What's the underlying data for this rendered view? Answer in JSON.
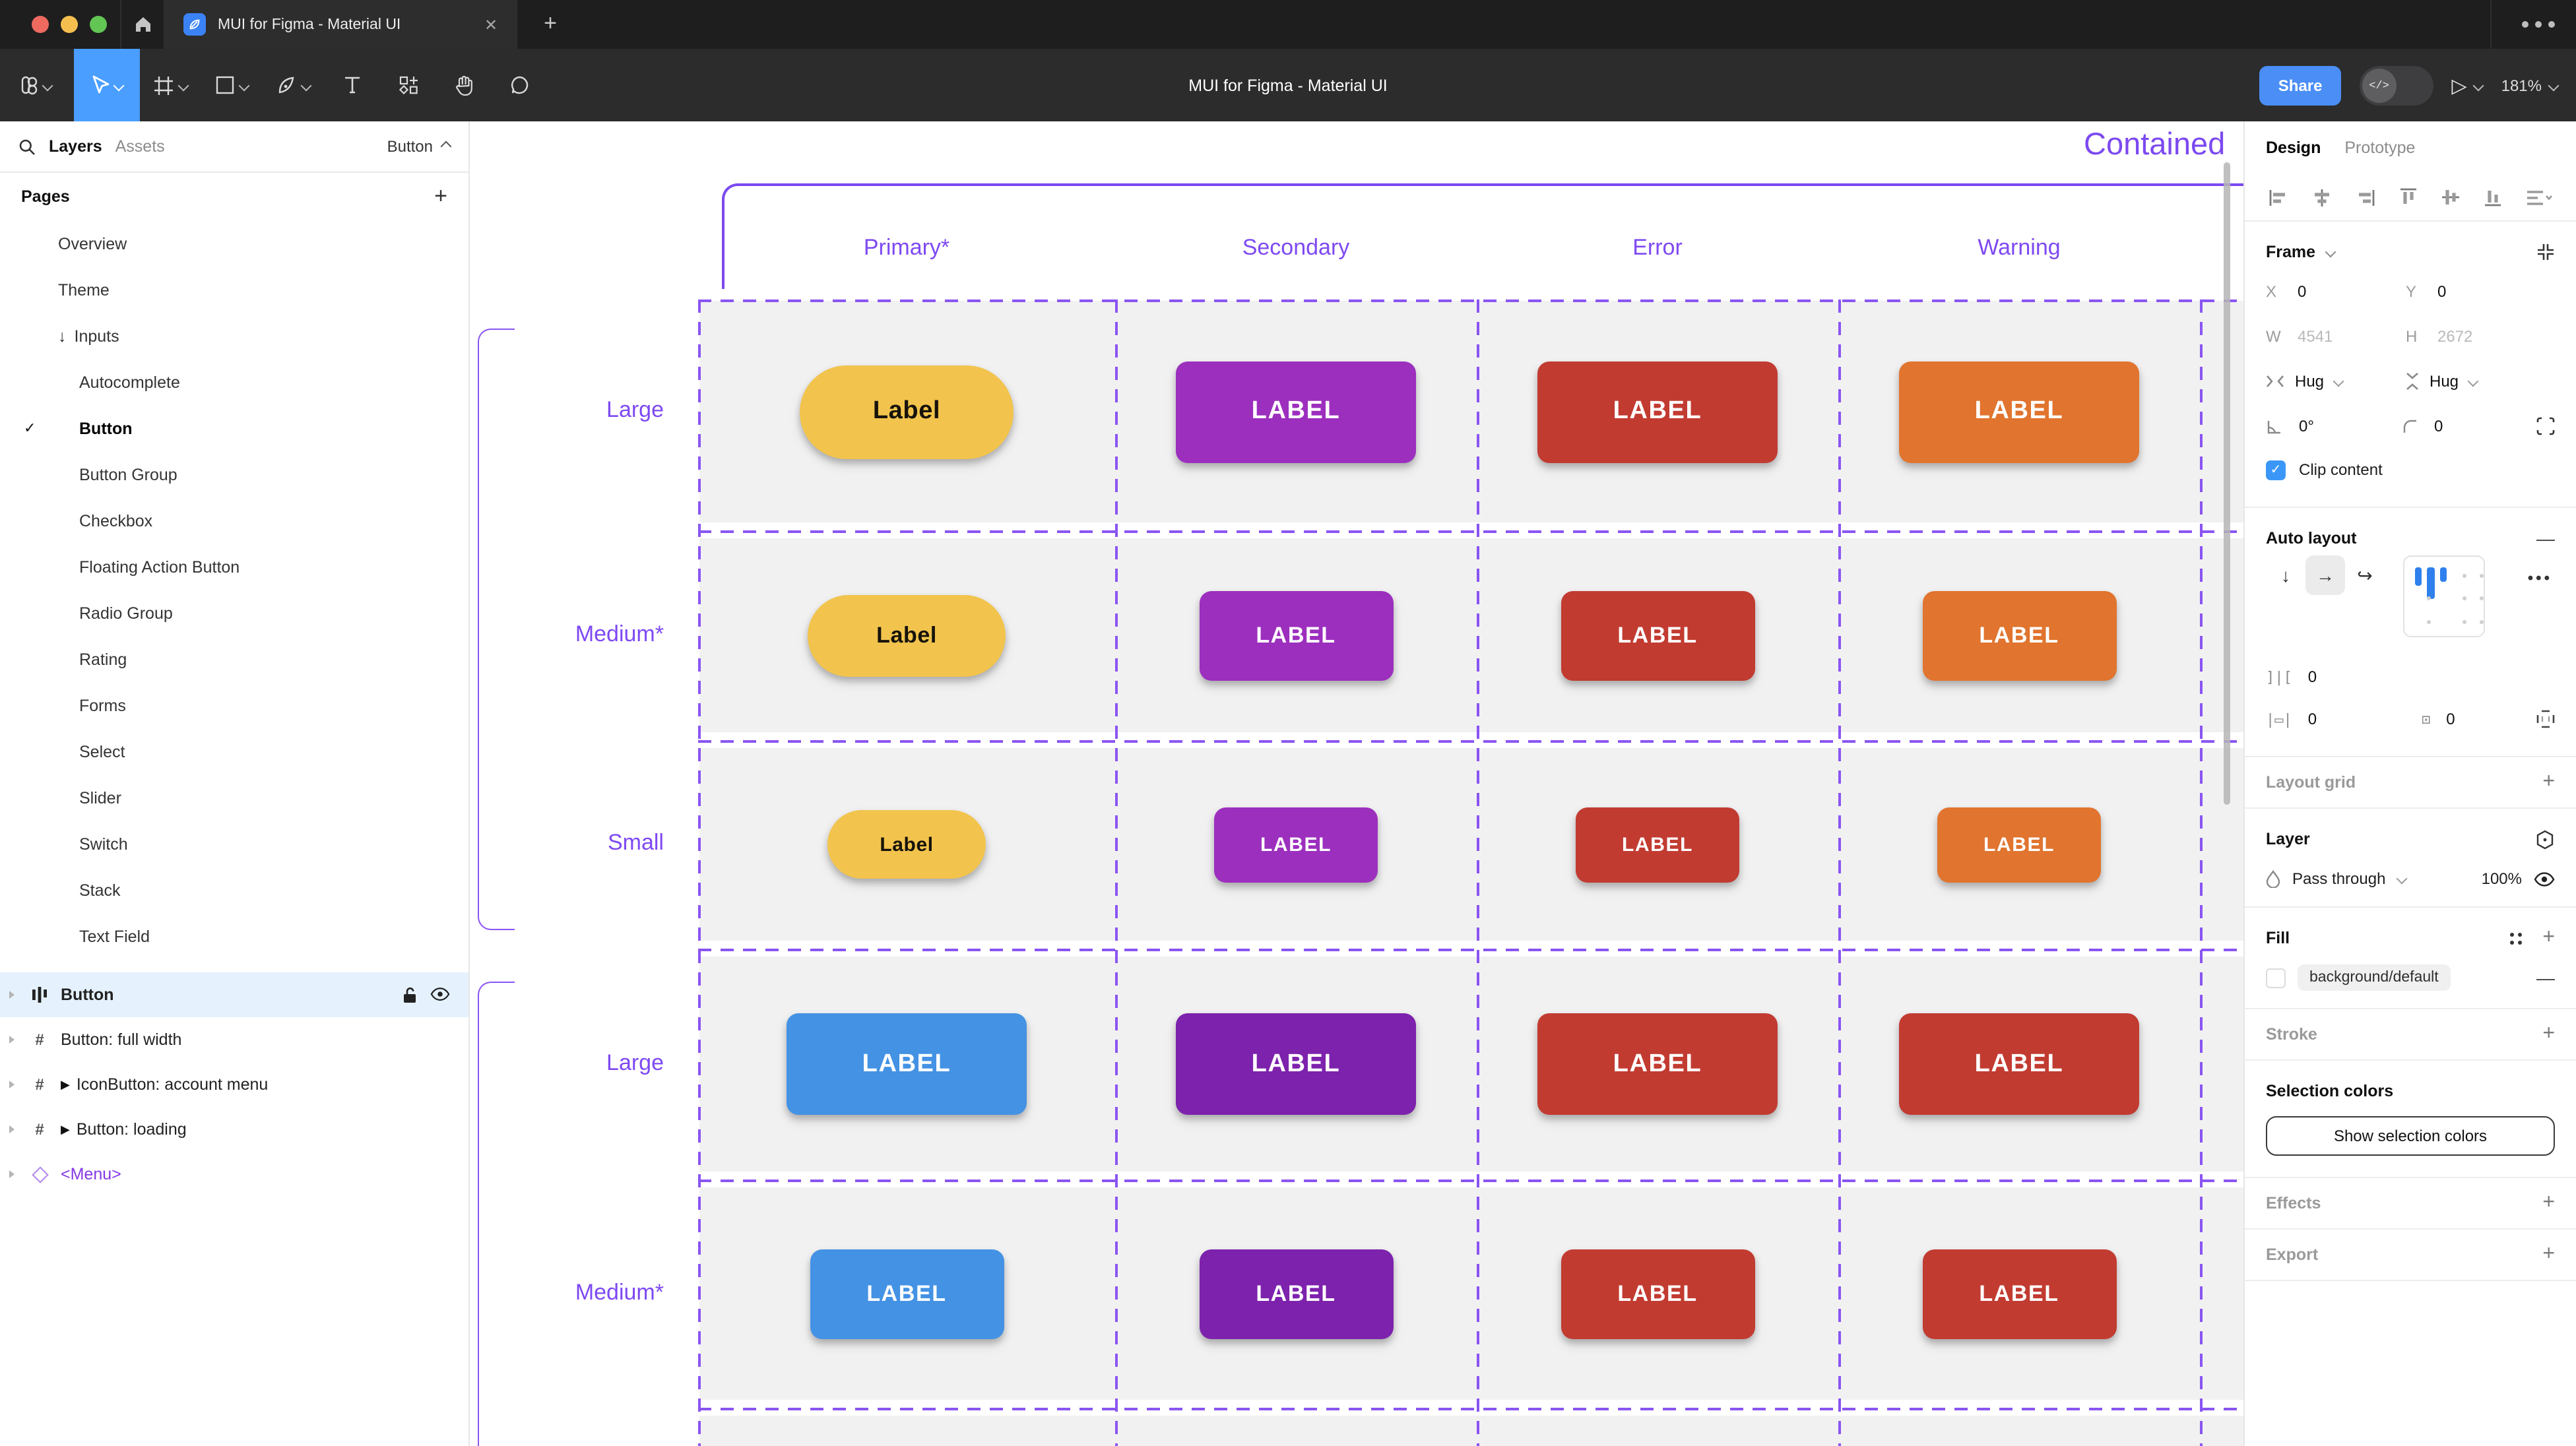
{
  "window": {
    "tab_title": "MUI for Figma - Material UI",
    "close_glyph": "✕",
    "new_tab_glyph": "+",
    "traffic_lights": [
      "#EE6A5F",
      "#F5BF4F",
      "#62C554"
    ]
  },
  "toolbar": {
    "doc_title": "MUI for Figma - Material UI",
    "share_label": "Share",
    "dev_toggle_glyph": "</>",
    "present_glyph": "▷",
    "zoom_level": "181%"
  },
  "left_panel": {
    "tabs": {
      "layers": "Layers",
      "assets": "Assets"
    },
    "page_selector": "Button",
    "pages_header": "Pages",
    "pages_add_glyph": "+",
    "pages": [
      {
        "label": "Overview",
        "indent": 1
      },
      {
        "label": "Theme",
        "indent": 1
      },
      {
        "label": "Inputs",
        "indent": 1,
        "arrow": "↓"
      },
      {
        "label": "Autocomplete",
        "indent": 2
      },
      {
        "label": "Button",
        "indent": 2,
        "checked": true,
        "selected": true
      },
      {
        "label": "Button Group",
        "indent": 2
      },
      {
        "label": "Checkbox",
        "indent": 2
      },
      {
        "label": "Floating Action Button",
        "indent": 2
      },
      {
        "label": "Radio Group",
        "indent": 2
      },
      {
        "label": "Rating",
        "indent": 2
      },
      {
        "label": "Forms",
        "indent": 2
      },
      {
        "label": "Select",
        "indent": 2
      },
      {
        "label": "Slider",
        "indent": 2
      },
      {
        "label": "Switch",
        "indent": 2
      },
      {
        "label": "Stack",
        "indent": 2
      },
      {
        "label": "Text Field",
        "indent": 2
      }
    ],
    "layers": [
      {
        "label": "Button",
        "icon": "autolayout",
        "selected": true
      },
      {
        "label": "Button: full width",
        "icon": "frame"
      },
      {
        "label": "IconButton: account menu",
        "icon": "frame",
        "play": true
      },
      {
        "label": "Button: loading",
        "icon": "frame",
        "play": true
      },
      {
        "label": "<Menu>",
        "icon": "component",
        "purple": true
      }
    ]
  },
  "canvas": {
    "frame_title": "Contained",
    "columns": [
      "Primary*",
      "Secondary",
      "Error",
      "Warning"
    ],
    "accent": "#7E49F2",
    "rows": [
      {
        "label": "Large",
        "size": "large",
        "buttons": [
          {
            "text": "Label",
            "bg": "#F2C44D",
            "fg": "#17130B",
            "pill": true
          },
          {
            "text": "LABEL",
            "bg": "#9C2FBE"
          },
          {
            "text": "LABEL",
            "bg": "#C23B31"
          },
          {
            "text": "LABEL",
            "bg": "#E1742E"
          }
        ]
      },
      {
        "label": "Medium*",
        "size": "medium",
        "buttons": [
          {
            "text": "Label",
            "bg": "#F2C44D",
            "fg": "#17130B",
            "pill": true
          },
          {
            "text": "LABEL",
            "bg": "#9C2FBE"
          },
          {
            "text": "LABEL",
            "bg": "#C23B31"
          },
          {
            "text": "LABEL",
            "bg": "#E1742E"
          }
        ]
      },
      {
        "label": "Small",
        "size": "small",
        "buttons": [
          {
            "text": "Label",
            "bg": "#F2C44D",
            "fg": "#17130B",
            "pill": true
          },
          {
            "text": "LABEL",
            "bg": "#9C2FBE"
          },
          {
            "text": "LABEL",
            "bg": "#C23B31"
          },
          {
            "text": "LABEL",
            "bg": "#E1742E"
          }
        ]
      },
      {
        "label": "Large",
        "size": "large",
        "buttons": [
          {
            "text": "LABEL",
            "bg": "#4492E4"
          },
          {
            "text": "LABEL",
            "bg": "#7D22AD"
          },
          {
            "text": "LABEL",
            "bg": "#C23B31"
          },
          {
            "text": "LABEL",
            "bg": "#C23B31"
          }
        ]
      },
      {
        "label": "Medium*",
        "size": "medium",
        "buttons": [
          {
            "text": "LABEL",
            "bg": "#4492E4"
          },
          {
            "text": "LABEL",
            "bg": "#7D22AD"
          },
          {
            "text": "LABEL",
            "bg": "#C23B31"
          },
          {
            "text": "LABEL",
            "bg": "#C23B31"
          }
        ]
      }
    ]
  },
  "right_panel": {
    "tabs": {
      "design": "Design",
      "prototype": "Prototype"
    },
    "frame": {
      "title": "Frame",
      "x_label": "X",
      "x": "0",
      "y_label": "Y",
      "y": "0",
      "w_label": "W",
      "w": "4541",
      "h_label": "H",
      "h": "2672",
      "hug_h": "Hug",
      "hug_v": "Hug",
      "angle": "0°",
      "radius": "0",
      "clip_label": "Clip content"
    },
    "auto_layout": {
      "title": "Auto layout",
      "down_glyph": "↓",
      "right_glyph": "→",
      "wrap_glyph": "↩",
      "gap": "0",
      "pad_h": "0",
      "pad_v": "0",
      "more_glyph": "•••"
    },
    "layout_grid": {
      "title": "Layout grid",
      "add_glyph": "+"
    },
    "layer": {
      "title": "Layer",
      "blend_mode": "Pass through",
      "opacity": "100%"
    },
    "fill": {
      "title": "Fill",
      "token": "background/default",
      "add_glyph": "+",
      "remove_glyph": "—"
    },
    "stroke": {
      "title": "Stroke",
      "add_glyph": "+"
    },
    "selection_colors": {
      "title": "Selection colors",
      "button_label": "Show selection colors"
    },
    "effects": {
      "title": "Effects",
      "add_glyph": "+"
    },
    "export": {
      "title": "Export",
      "add_glyph": "+"
    }
  }
}
